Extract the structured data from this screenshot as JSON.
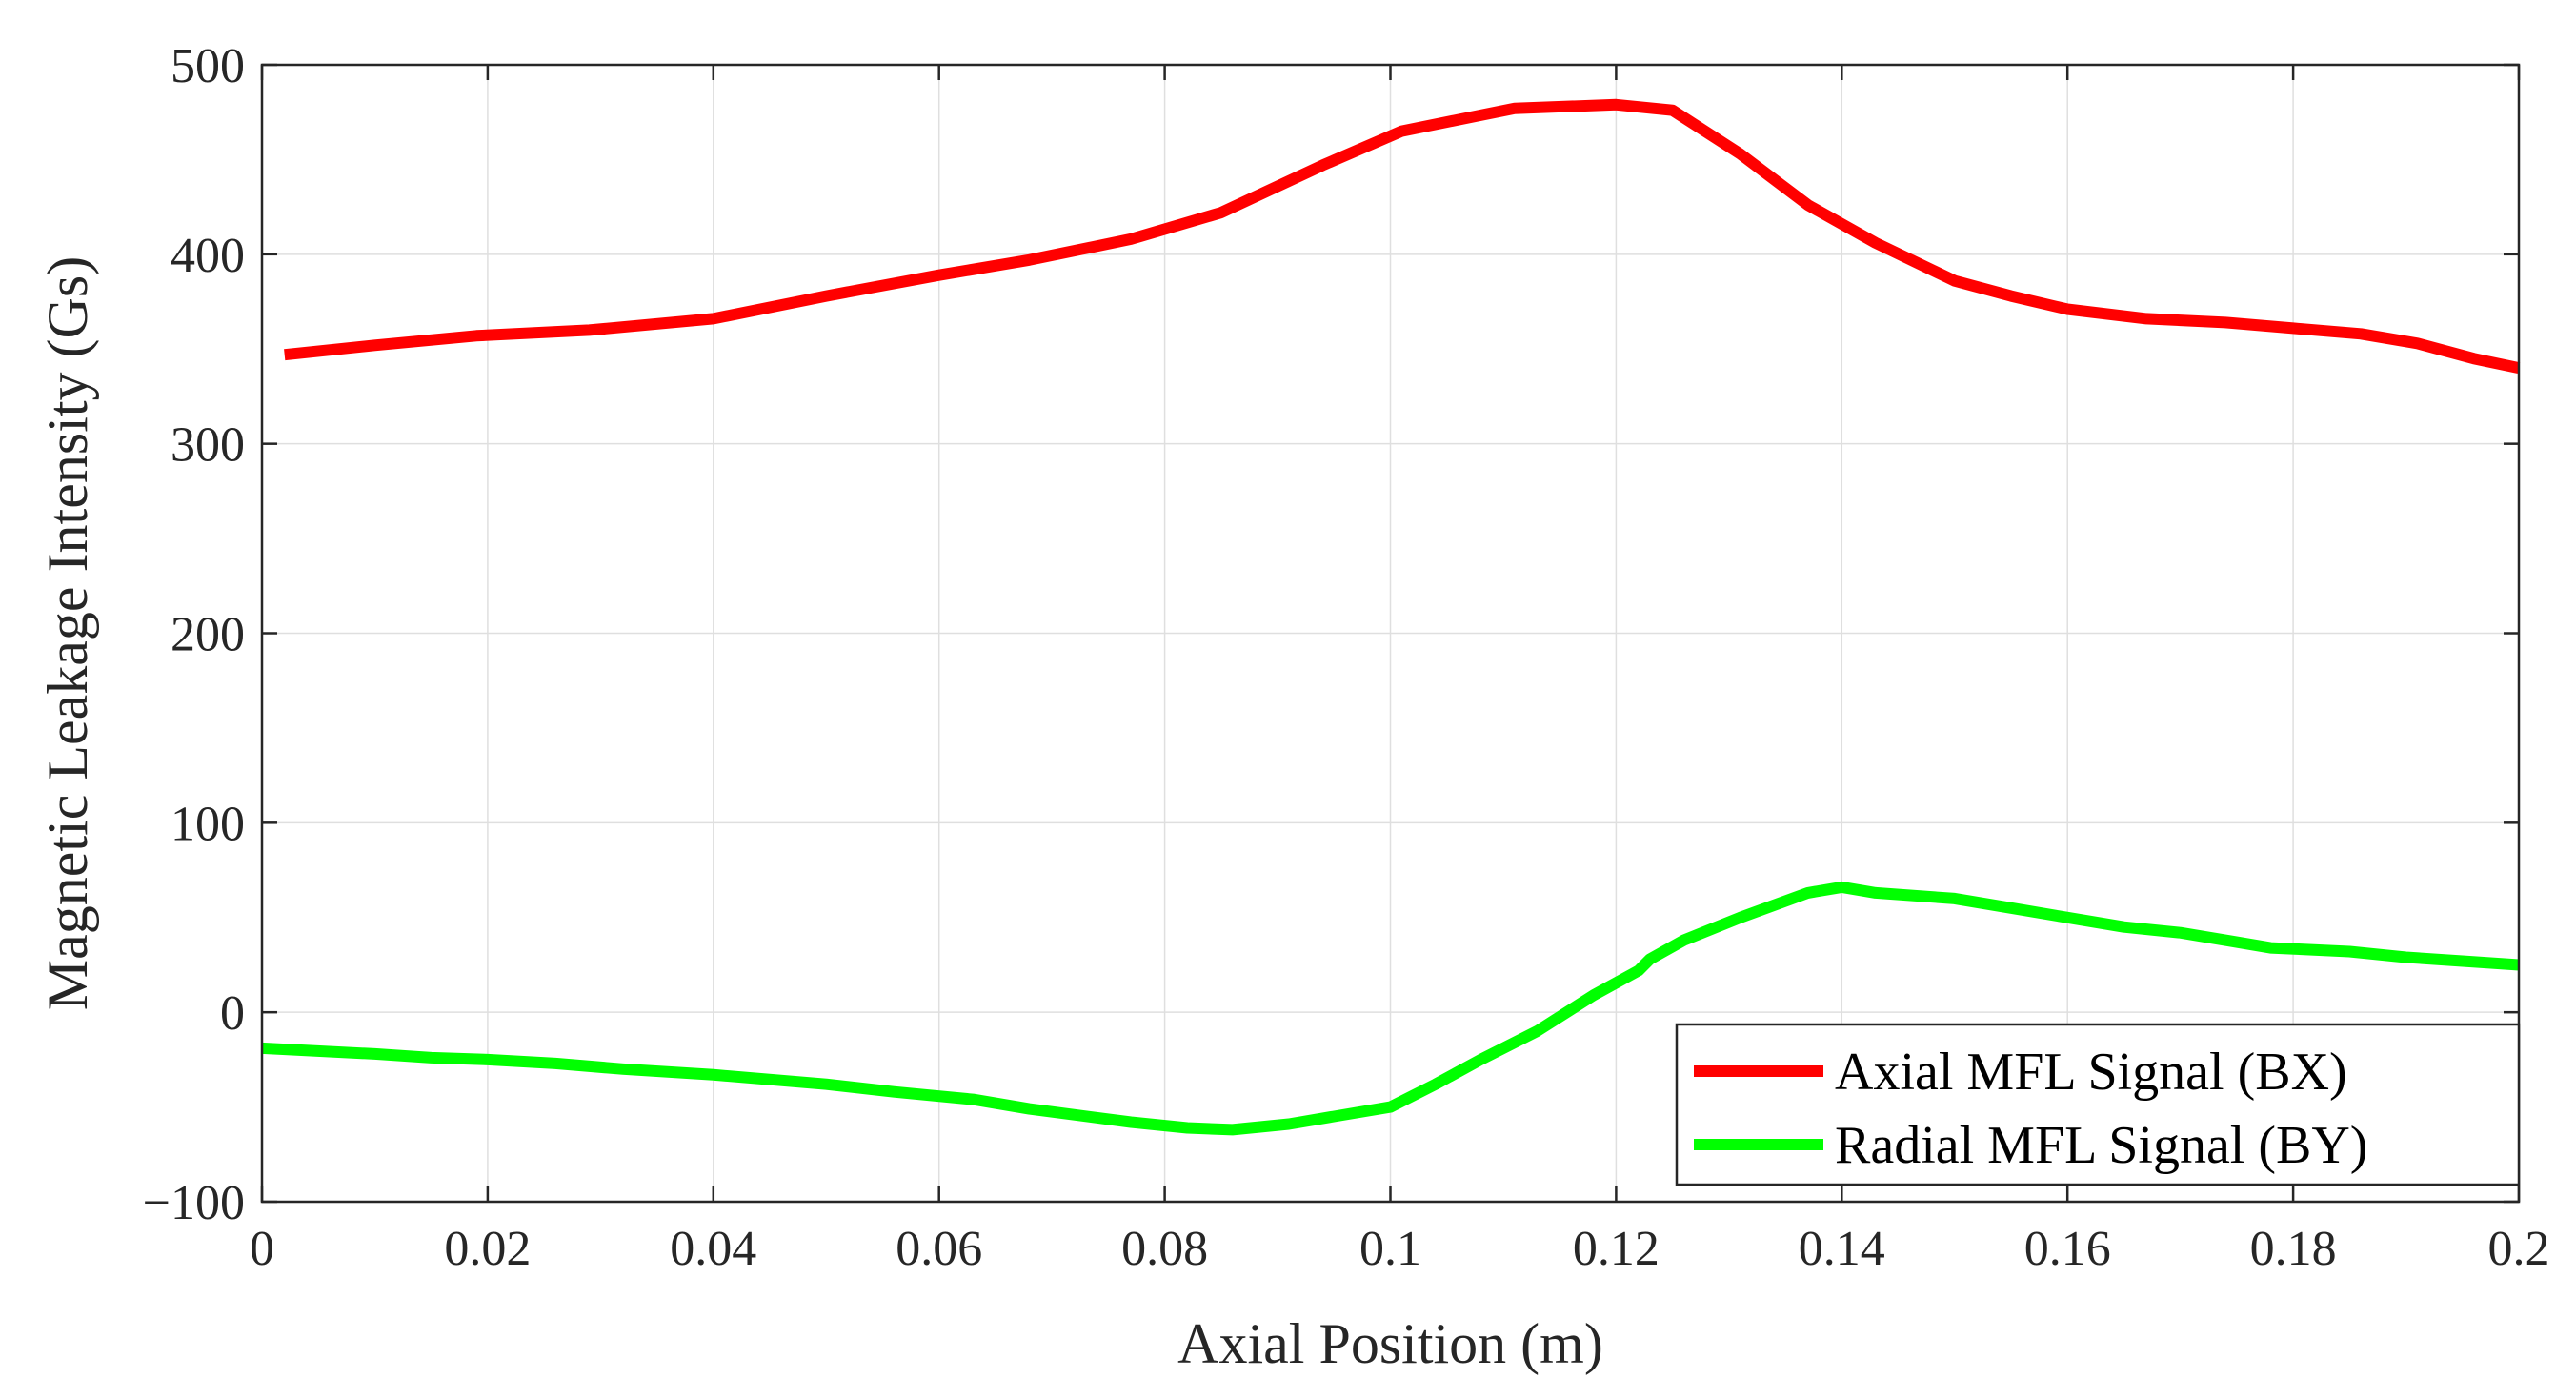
{
  "chart_data": {
    "type": "line",
    "title": "",
    "xlabel": "Axial Position (m)",
    "ylabel": "Magnetic Leakage Intensity (Gs)",
    "xlim": [
      0,
      0.2
    ],
    "ylim": [
      -100,
      500
    ],
    "xticks": [
      0,
      0.02,
      0.04,
      0.06,
      0.08,
      0.1,
      0.12,
      0.14,
      0.16,
      0.18,
      0.2
    ],
    "xtick_labels": [
      "0",
      "0.02",
      "0.04",
      "0.06",
      "0.08",
      "0.1",
      "0.12",
      "0.14",
      "0.16",
      "0.18",
      "0.2"
    ],
    "yticks": [
      -100,
      0,
      100,
      200,
      300,
      400,
      500
    ],
    "ytick_labels": [
      "−100",
      "0",
      "100",
      "200",
      "300",
      "400",
      "500"
    ],
    "grid": true,
    "legend_position": "bottom-right",
    "series": [
      {
        "name": "Axial MFL Signal (BX)",
        "color": "#ff0000",
        "x": [
          0.002,
          0.01,
          0.019,
          0.029,
          0.04,
          0.05,
          0.06,
          0.068,
          0.077,
          0.085,
          0.094,
          0.101,
          0.111,
          0.12,
          0.125,
          0.131,
          0.137,
          0.143,
          0.15,
          0.155,
          0.16,
          0.167,
          0.174,
          0.18,
          0.186,
          0.191,
          0.196,
          0.2
        ],
        "y": [
          347,
          352,
          357,
          360,
          366,
          378,
          389,
          397,
          408,
          422,
          447,
          465,
          477,
          479,
          476,
          453,
          426,
          406,
          386,
          378,
          371,
          366,
          364,
          361,
          358,
          353,
          345,
          340
        ]
      },
      {
        "name": "Radial MFL Signal (BY)",
        "color": "#00ff00",
        "x": [
          0,
          0.01,
          0.015,
          0.02,
          0.026,
          0.032,
          0.04,
          0.05,
          0.056,
          0.063,
          0.068,
          0.077,
          0.082,
          0.086,
          0.091,
          0.095,
          0.1,
          0.104,
          0.108,
          0.113,
          0.118,
          0.122,
          0.123,
          0.126,
          0.131,
          0.137,
          0.14,
          0.143,
          0.15,
          0.155,
          0.16,
          0.165,
          0.17,
          0.175,
          0.178,
          0.185,
          0.19,
          0.195,
          0.2
        ],
        "y": [
          -19,
          -22,
          -24,
          -25,
          -27,
          -30,
          -33,
          -38,
          -42,
          -46,
          -51,
          -58,
          -61,
          -62,
          -59,
          -55,
          -50,
          -38,
          -25,
          -10,
          9,
          22,
          28,
          38,
          50,
          63,
          66,
          63,
          60,
          55,
          50,
          45,
          42,
          37,
          34,
          32,
          29,
          27,
          25
        ]
      }
    ]
  }
}
